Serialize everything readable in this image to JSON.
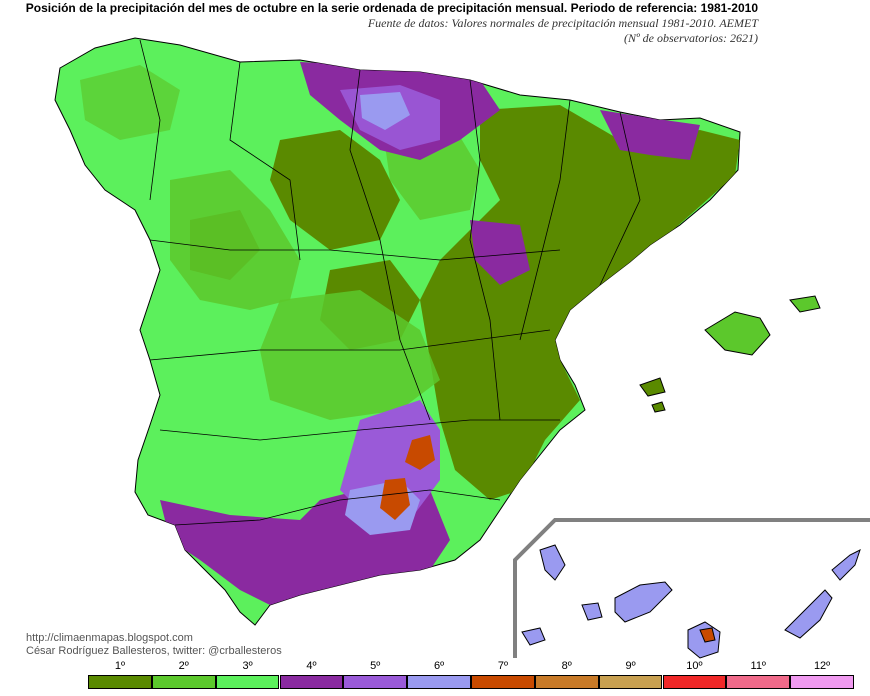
{
  "header": {
    "title": "Posición de la precipitación del mes de octubre en la serie ordenada de precipitación mensual. Periodo de referencia: 1981-2010",
    "subtitle": "Fuente de datos: Valores normales de precipitación mensual 1981-2010. AEMET",
    "observatories": "(Nº de observatorios: 2621)"
  },
  "credits": {
    "blog": "http://climaenmapas.blogspot.com",
    "author": "César Rodríguez Ballesteros, twitter: @crballesteros"
  },
  "legend": [
    {
      "label": "1º",
      "color": "#5a8a00"
    },
    {
      "label": "2º",
      "color": "#5cc82c"
    },
    {
      "label": "3º",
      "color": "#5cf05c"
    },
    {
      "label": "4º",
      "color": "#8a2aa0"
    },
    {
      "label": "5º",
      "color": "#9a5ad8"
    },
    {
      "label": "6º",
      "color": "#9a9af0"
    },
    {
      "label": "7º",
      "color": "#c84a00"
    },
    {
      "label": "8º",
      "color": "#c87a28"
    },
    {
      "label": "9º",
      "color": "#c8a050"
    },
    {
      "label": "10º",
      "color": "#f02828"
    },
    {
      "label": "11º",
      "color": "#f06a8a"
    },
    {
      "label": "12º",
      "color": "#f09af0"
    }
  ]
}
